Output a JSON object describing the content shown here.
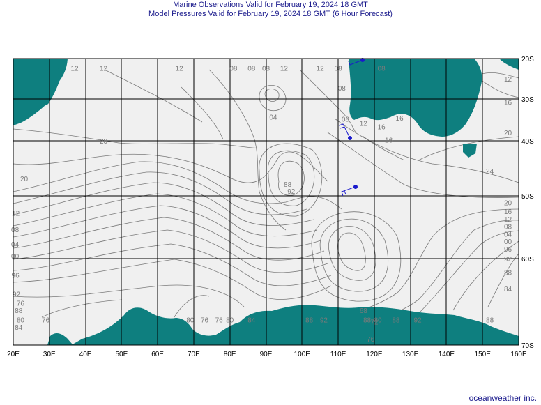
{
  "header": {
    "title_line1": "Marine Observations Valid for February 19, 2024 18 GMT",
    "title_line2": "Model Pressures Valid for February 19, 2024 18 GMT (6 Hour Forecast)"
  },
  "map": {
    "lon_range": [
      20,
      160
    ],
    "lat_range": [
      -20,
      -70
    ],
    "lon_ticks": [
      "20E",
      "30E",
      "40E",
      "50E",
      "60E",
      "70E",
      "80E",
      "90E",
      "100E",
      "110E",
      "120E",
      "130E",
      "140E",
      "150E",
      "160E"
    ],
    "lat_ticks": [
      "20S",
      "30S",
      "40S",
      "50S",
      "60S",
      "70S"
    ],
    "colors": {
      "land": "#0e7f7f",
      "ocean": "#f0f0f0",
      "grid": "#000000",
      "isobar": "#7a7a7a",
      "obs": "#1a1acc"
    },
    "isobar_labels": [
      {
        "text": "12",
        "lon": 37,
        "lat": -22.6
      },
      {
        "text": "12",
        "lon": 45,
        "lat": -22.6
      },
      {
        "text": "12",
        "lon": 66,
        "lat": -22.6
      },
      {
        "text": "08",
        "lon": 81,
        "lat": -22.6
      },
      {
        "text": "08",
        "lon": 86,
        "lat": -22.6
      },
      {
        "text": "08",
        "lon": 90,
        "lat": -22.6
      },
      {
        "text": "12",
        "lon": 95,
        "lat": -22.6
      },
      {
        "text": "12",
        "lon": 105,
        "lat": -22.6
      },
      {
        "text": "08",
        "lon": 110,
        "lat": -22.6
      },
      {
        "text": "08",
        "lon": 122,
        "lat": -22.6
      },
      {
        "text": "08",
        "lon": 111,
        "lat": -27.5
      },
      {
        "text": "04",
        "lon": 92,
        "lat": -34.5
      },
      {
        "text": "08",
        "lon": 112,
        "lat": -35
      },
      {
        "text": "12",
        "lon": 117,
        "lat": -36
      },
      {
        "text": "16",
        "lon": 122,
        "lat": -36.8
      },
      {
        "text": "16",
        "lon": 127,
        "lat": -34.7
      },
      {
        "text": "16",
        "lon": 124,
        "lat": -40
      },
      {
        "text": "20",
        "lon": 45,
        "lat": -40.2
      },
      {
        "text": "20",
        "lon": 23,
        "lat": -47
      },
      {
        "text": "88",
        "lon": 96,
        "lat": -48
      },
      {
        "text": "92",
        "lon": 97,
        "lat": -49.3
      },
      {
        "text": "12",
        "lon": 20.7,
        "lat": -52.9
      },
      {
        "text": "08",
        "lon": 20.5,
        "lat": -55.5
      },
      {
        "text": "04",
        "lon": 20.5,
        "lat": -57.8
      },
      {
        "text": "00",
        "lon": 20.5,
        "lat": -59.7
      },
      {
        "text": "96",
        "lon": 20.6,
        "lat": -62
      },
      {
        "text": "92",
        "lon": 20.9,
        "lat": -64.2
      },
      {
        "text": "88",
        "lon": 21.5,
        "lat": -66.1
      },
      {
        "text": "84",
        "lon": 21.5,
        "lat": -68
      },
      {
        "text": "80",
        "lon": 22,
        "lat": -70.9
      },
      {
        "text": "76",
        "lon": 22,
        "lat": -74.6
      },
      {
        "text": "76",
        "lon": 29,
        "lat": -78.7
      },
      {
        "text": "68",
        "lon": 117,
        "lat": -66.1
      },
      {
        "text": "72",
        "lon": 120,
        "lat": -67.4
      },
      {
        "text": "76",
        "lon": 119,
        "lat": -69.4
      },
      {
        "text": "80",
        "lon": 121,
        "lat": -72
      },
      {
        "text": "12",
        "lon": 157,
        "lat": -25.2
      },
      {
        "text": "16",
        "lon": 157,
        "lat": -31
      },
      {
        "text": "20",
        "lon": 157,
        "lat": -38.2
      },
      {
        "text": "24",
        "lon": 152,
        "lat": -45.6
      },
      {
        "text": "20",
        "lon": 157,
        "lat": -51.2
      },
      {
        "text": "16",
        "lon": 157,
        "lat": -52.6
      },
      {
        "text": "12",
        "lon": 157,
        "lat": -53.8
      },
      {
        "text": "08",
        "lon": 157,
        "lat": -55
      },
      {
        "text": "04",
        "lon": 157,
        "lat": -56.2
      },
      {
        "text": "00",
        "lon": 157,
        "lat": -57.4
      },
      {
        "text": "96",
        "lon": 157,
        "lat": -58.6
      },
      {
        "text": "92",
        "lon": 157,
        "lat": -60.1
      },
      {
        "text": "88",
        "lon": 157,
        "lat": -61.7
      },
      {
        "text": "84",
        "lon": 157,
        "lat": -63.6
      },
      {
        "text": "80",
        "lon": 69,
        "lat": -78.9
      },
      {
        "text": "76",
        "lon": 73,
        "lat": -78.9
      },
      {
        "text": "76",
        "lon": 77,
        "lat": -78.9
      },
      {
        "text": "80",
        "lon": 80,
        "lat": -78.9
      },
      {
        "text": "84",
        "lon": 86,
        "lat": -78.9
      },
      {
        "text": "88",
        "lon": 102,
        "lat": -78.9
      },
      {
        "text": "92",
        "lon": 106,
        "lat": -78.9
      },
      {
        "text": "88",
        "lon": 118,
        "lat": -78.9
      },
      {
        "text": "88",
        "lon": 126,
        "lat": -78.9
      },
      {
        "text": "92",
        "lon": 132,
        "lat": -78.9
      },
      {
        "text": "88",
        "lon": 152,
        "lat": -78.9
      }
    ]
  },
  "footer": {
    "credit": "oceanweather inc."
  }
}
